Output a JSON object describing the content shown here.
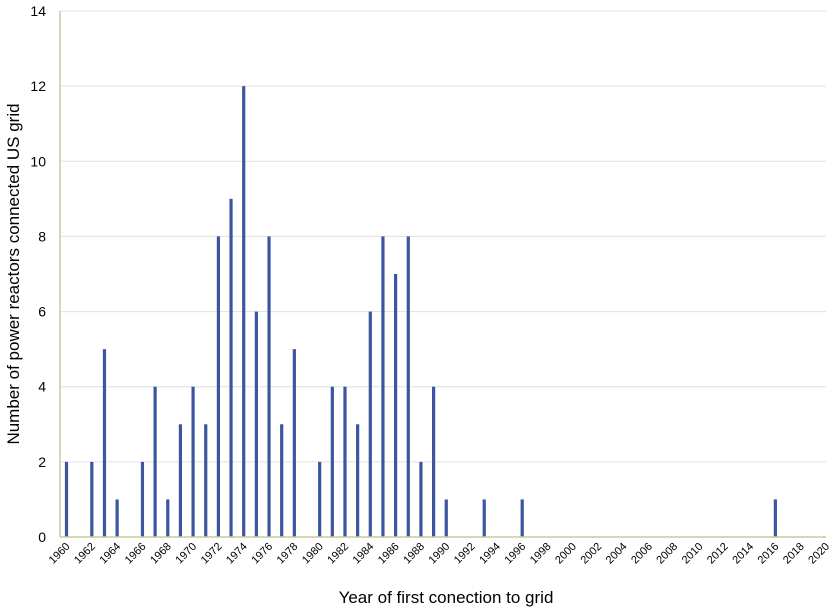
{
  "chart_data": {
    "type": "bar",
    "title": "",
    "xlabel": "Year of first conection to grid",
    "ylabel": "Number of power reactors connected US grid",
    "ylim": [
      0,
      14
    ],
    "yticks": [
      "0",
      "2",
      "4",
      "6",
      "8",
      "10",
      "12",
      "14"
    ],
    "xlim": [
      1960,
      2020
    ],
    "xticks": [
      "1960",
      "1962",
      "1964",
      "1966",
      "1968",
      "1970",
      "1972",
      "1974",
      "1976",
      "1978",
      "1980",
      "1982",
      "1984",
      "1986",
      "1988",
      "1990",
      "1992",
      "1994",
      "1996",
      "1998",
      "2000",
      "2002",
      "2004",
      "2006",
      "2008",
      "2010",
      "2012",
      "2014",
      "2016",
      "2018",
      "2020"
    ],
    "grid": true,
    "bar_color": "#3b55a0",
    "axis_color": "#c8c8a0",
    "grid_color": "#e0e0e0",
    "points": [
      {
        "x": 1960,
        "y": 2
      },
      {
        "x": 1962,
        "y": 2
      },
      {
        "x": 1963,
        "y": 5
      },
      {
        "x": 1964,
        "y": 1
      },
      {
        "x": 1966,
        "y": 2
      },
      {
        "x": 1967,
        "y": 4
      },
      {
        "x": 1968,
        "y": 1
      },
      {
        "x": 1969,
        "y": 3
      },
      {
        "x": 1970,
        "y": 4
      },
      {
        "x": 1971,
        "y": 3
      },
      {
        "x": 1972,
        "y": 8
      },
      {
        "x": 1973,
        "y": 9
      },
      {
        "x": 1974,
        "y": 12
      },
      {
        "x": 1975,
        "y": 6
      },
      {
        "x": 1976,
        "y": 8
      },
      {
        "x": 1977,
        "y": 3
      },
      {
        "x": 1978,
        "y": 5
      },
      {
        "x": 1980,
        "y": 2
      },
      {
        "x": 1981,
        "y": 4
      },
      {
        "x": 1982,
        "y": 4
      },
      {
        "x": 1983,
        "y": 3
      },
      {
        "x": 1984,
        "y": 6
      },
      {
        "x": 1985,
        "y": 8
      },
      {
        "x": 1986,
        "y": 7
      },
      {
        "x": 1987,
        "y": 8
      },
      {
        "x": 1988,
        "y": 2
      },
      {
        "x": 1989,
        "y": 4
      },
      {
        "x": 1990,
        "y": 1
      },
      {
        "x": 1993,
        "y": 1
      },
      {
        "x": 1996,
        "y": 1
      },
      {
        "x": 2016,
        "y": 1
      }
    ]
  }
}
